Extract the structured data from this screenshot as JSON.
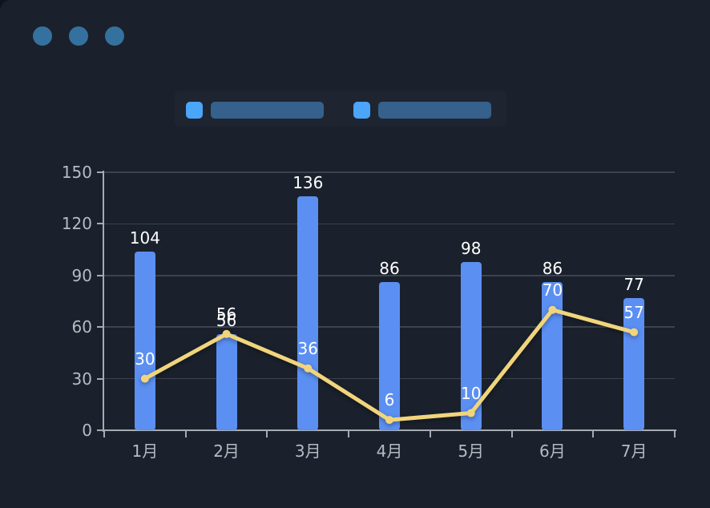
{
  "window": {
    "controls": [
      "window-dot-1",
      "window-dot-2",
      "window-dot-3"
    ]
  },
  "legend": {
    "items": [
      {
        "name": "bar-series-legend",
        "label": ""
      },
      {
        "name": "line-series-legend",
        "label": ""
      }
    ]
  },
  "chart_data": {
    "type": "combo",
    "categories": [
      "1月",
      "2月",
      "3月",
      "4月",
      "5月",
      "6月",
      "7月"
    ],
    "series": [
      {
        "name": "bar-series",
        "type": "bar",
        "values": [
          104,
          56,
          136,
          86,
          98,
          86,
          77
        ]
      },
      {
        "name": "line-series",
        "type": "line",
        "values": [
          30,
          56,
          36,
          6,
          10,
          70,
          57
        ]
      }
    ],
    "title": "",
    "xlabel": "",
    "ylabel": "",
    "ylim": [
      0,
      150
    ],
    "yticks": [
      0,
      30,
      60,
      90,
      120,
      150
    ],
    "grid": true,
    "legend_position": "top",
    "value_labels": true
  },
  "colors": {
    "background": "#1a212c",
    "bar": "#5b8ff2",
    "line": "#f1d57c",
    "grid": "#3d434e",
    "axis": "#a6aab2",
    "tick_label": "#b7bac2",
    "value_label": "#ffffff",
    "legend_swatch": "#4ba5f9",
    "legend_bar": "#35618c",
    "window_dot": "#35719e"
  }
}
